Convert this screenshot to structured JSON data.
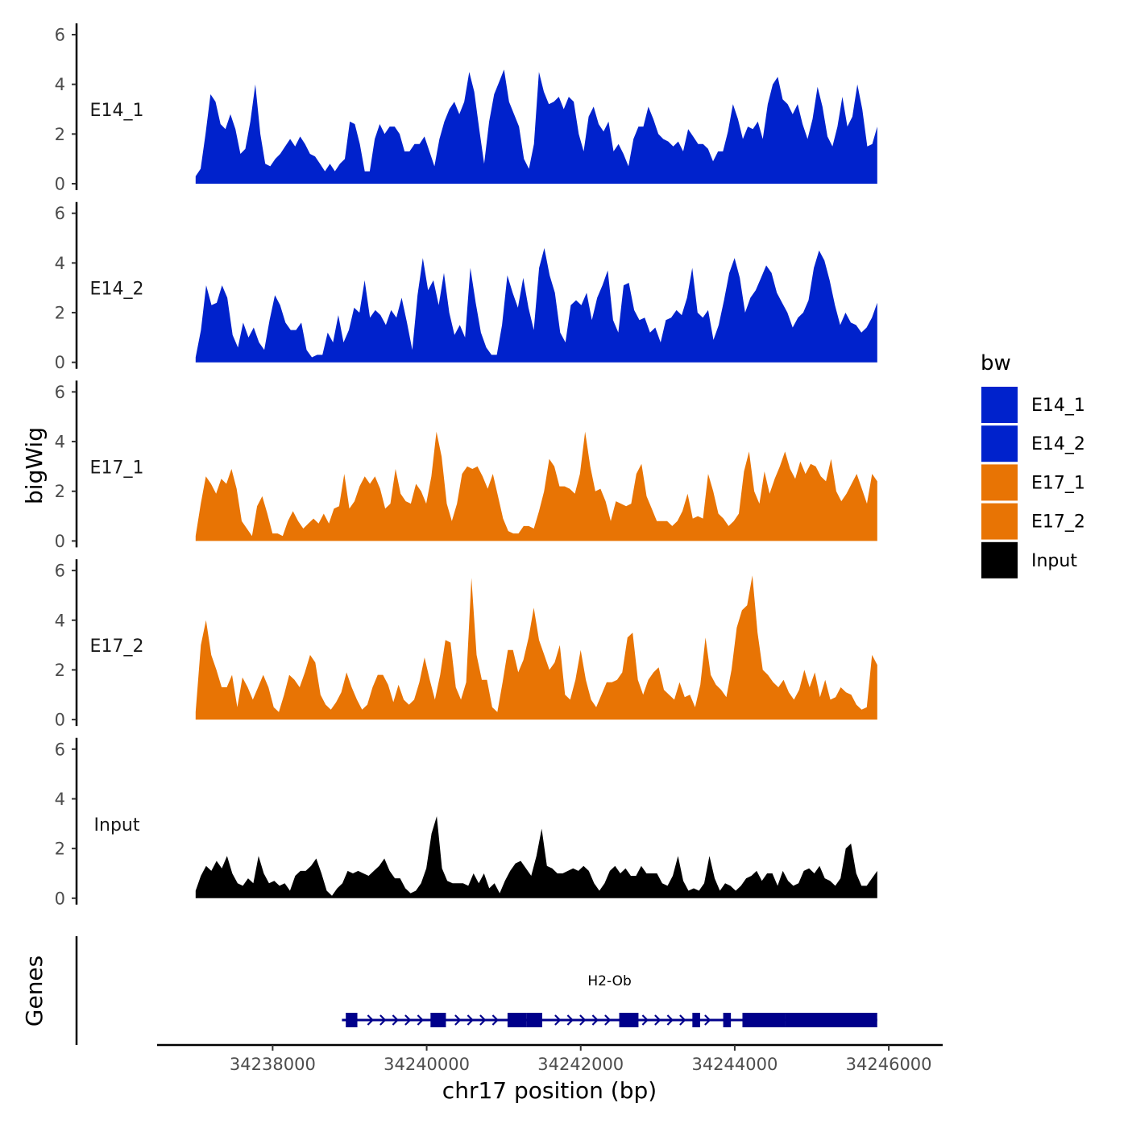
{
  "chart_data": {
    "type": "area",
    "title": "",
    "ylabel": "bigWig",
    "xlabel": "chr17 position (bp)",
    "ylim": [
      0,
      6
    ],
    "yticks": [
      0,
      2,
      4,
      6
    ],
    "xlim": [
      34236500,
      34246700
    ],
    "xticks": [
      34238000,
      34240000,
      34242000,
      34244000,
      34246000
    ],
    "x_start": 34237000,
    "x_end": 34245850,
    "tracks": [
      {
        "name": "E14_1",
        "color": "#0022cc",
        "values": [
          0.3,
          0.6,
          2.0,
          3.6,
          3.3,
          2.4,
          2.2,
          2.8,
          2.2,
          1.2,
          1.4,
          2.5,
          4.0,
          2.0,
          0.8,
          0.7,
          1.0,
          1.2,
          1.5,
          1.8,
          1.5,
          1.9,
          1.6,
          1.2,
          1.1,
          0.8,
          0.5,
          0.8,
          0.5,
          0.8,
          1.0,
          2.5,
          2.4,
          1.6,
          0.5,
          0.5,
          1.8,
          2.4,
          2.0,
          2.3,
          2.3,
          2.0,
          1.3,
          1.3,
          1.6,
          1.6,
          1.9,
          1.3,
          0.7,
          1.8,
          2.5,
          3.0,
          3.3,
          2.8,
          3.3,
          4.5,
          3.7,
          2.2,
          0.8,
          2.5,
          3.6,
          4.1,
          4.6,
          3.3,
          2.8,
          2.3,
          1.0,
          0.6,
          1.6,
          4.5,
          3.7,
          3.2,
          3.3,
          3.5,
          3.0,
          3.5,
          3.3,
          2.0,
          1.3,
          2.7,
          3.1,
          2.4,
          2.1,
          2.5,
          1.3,
          1.6,
          1.2,
          0.7,
          1.8,
          2.3,
          2.3,
          3.1,
          2.6,
          2.0,
          1.8,
          1.7,
          1.5,
          1.7,
          1.3,
          2.2,
          1.9,
          1.6,
          1.6,
          1.4,
          0.9,
          1.3,
          1.3,
          2.1,
          3.2,
          2.6,
          1.8,
          2.3,
          2.2,
          2.5,
          1.8,
          3.2,
          4.0,
          4.3,
          3.4,
          3.2,
          2.8,
          3.2,
          2.4,
          1.8,
          2.6,
          3.9,
          3.1,
          1.9,
          1.5,
          2.3,
          3.5,
          2.3,
          2.7,
          4.0,
          3.0,
          1.5,
          1.6,
          2.3
        ]
      },
      {
        "name": "E14_2",
        "color": "#0022cc",
        "values": [
          0.2,
          1.3,
          3.1,
          2.3,
          2.4,
          3.1,
          2.6,
          1.1,
          0.6,
          1.6,
          1.0,
          1.4,
          0.8,
          0.5,
          1.7,
          2.7,
          2.3,
          1.6,
          1.3,
          1.3,
          1.6,
          0.5,
          0.2,
          0.3,
          0.3,
          1.2,
          0.8,
          1.9,
          0.8,
          1.3,
          2.2,
          2.0,
          3.3,
          1.8,
          2.1,
          1.9,
          1.5,
          2.1,
          1.8,
          2.6,
          1.6,
          0.5,
          2.7,
          4.2,
          2.9,
          3.3,
          2.3,
          3.6,
          2.0,
          1.1,
          1.5,
          1.0,
          3.8,
          2.4,
          1.2,
          0.6,
          0.3,
          0.3,
          1.5,
          3.5,
          2.8,
          2.2,
          3.4,
          2.2,
          1.3,
          3.8,
          4.6,
          3.5,
          2.8,
          1.2,
          0.8,
          2.3,
          2.5,
          2.3,
          2.8,
          1.7,
          2.6,
          3.1,
          3.7,
          1.7,
          1.2,
          3.1,
          3.2,
          2.1,
          1.7,
          1.8,
          1.2,
          1.4,
          0.8,
          1.7,
          1.8,
          2.1,
          1.9,
          2.6,
          3.8,
          2.0,
          1.8,
          2.1,
          0.9,
          1.5,
          2.5,
          3.6,
          4.2,
          3.4,
          2.0,
          2.6,
          2.9,
          3.4,
          3.9,
          3.6,
          2.8,
          2.4,
          2.0,
          1.4,
          1.8,
          2.0,
          2.5,
          3.8,
          4.5,
          4.1,
          3.3,
          2.3,
          1.5,
          2.0,
          1.6,
          1.5,
          1.2,
          1.4,
          1.8,
          2.4
        ]
      },
      {
        "name": "E17_1",
        "color": "#e87404",
        "values": [
          0.2,
          1.5,
          2.6,
          2.3,
          1.9,
          2.5,
          2.3,
          2.9,
          2.1,
          0.8,
          0.5,
          0.2,
          1.4,
          1.8,
          1.1,
          0.3,
          0.3,
          0.2,
          0.8,
          1.2,
          0.8,
          0.5,
          0.7,
          0.9,
          0.7,
          1.1,
          0.7,
          1.3,
          1.4,
          2.7,
          1.3,
          1.6,
          2.2,
          2.6,
          2.3,
          2.6,
          2.1,
          1.3,
          1.5,
          2.9,
          1.9,
          1.6,
          1.5,
          2.3,
          2.0,
          1.5,
          2.6,
          4.4,
          3.4,
          1.5,
          0.8,
          1.5,
          2.7,
          3.0,
          2.9,
          3.0,
          2.6,
          2.1,
          2.7,
          1.8,
          0.9,
          0.4,
          0.3,
          0.3,
          0.6,
          0.6,
          0.5,
          1.2,
          2.0,
          3.3,
          3.0,
          2.2,
          2.2,
          2.1,
          1.9,
          2.7,
          4.4,
          3.0,
          2.0,
          2.1,
          1.6,
          0.8,
          1.6,
          1.5,
          1.4,
          1.5,
          2.7,
          3.1,
          1.8,
          1.3,
          0.8,
          0.8,
          0.8,
          0.6,
          0.8,
          1.2,
          1.9,
          0.9,
          1.0,
          0.9,
          2.7,
          2.0,
          1.1,
          0.9,
          0.6,
          0.8,
          1.1,
          2.8,
          3.6,
          2.0,
          1.5,
          2.8,
          1.9,
          2.5,
          3.0,
          3.6,
          2.9,
          2.5,
          3.2,
          2.7,
          3.1,
          3.0,
          2.6,
          2.4,
          3.3,
          2.0,
          1.6,
          1.9,
          2.3,
          2.7,
          2.1,
          1.5,
          2.7,
          2.4
        ]
      },
      {
        "name": "E17_2",
        "color": "#e87404",
        "values": [
          0.3,
          3.0,
          4.0,
          2.6,
          2.0,
          1.3,
          1.3,
          1.8,
          0.5,
          1.7,
          1.3,
          0.8,
          1.3,
          1.8,
          1.3,
          0.5,
          0.3,
          1.0,
          1.8,
          1.6,
          1.3,
          1.9,
          2.6,
          2.3,
          1.0,
          0.6,
          0.4,
          0.7,
          1.1,
          1.9,
          1.3,
          0.8,
          0.4,
          0.6,
          1.3,
          1.8,
          1.8,
          1.4,
          0.7,
          1.4,
          0.8,
          0.6,
          0.8,
          1.5,
          2.5,
          1.6,
          0.8,
          1.8,
          3.2,
          3.1,
          1.3,
          0.8,
          1.5,
          5.7,
          2.6,
          1.6,
          1.6,
          0.5,
          0.3,
          1.5,
          2.8,
          2.8,
          1.9,
          2.4,
          3.3,
          4.5,
          3.2,
          2.6,
          2.0,
          2.3,
          3.0,
          1.0,
          0.8,
          1.6,
          2.8,
          1.6,
          0.8,
          0.5,
          1.0,
          1.5,
          1.5,
          1.6,
          1.9,
          3.3,
          3.5,
          1.6,
          1.0,
          1.6,
          1.9,
          2.1,
          1.2,
          1.0,
          0.8,
          1.5,
          0.9,
          1.0,
          0.5,
          1.4,
          3.3,
          1.8,
          1.4,
          1.2,
          0.9,
          2.0,
          3.7,
          4.4,
          4.6,
          5.8,
          3.5,
          2.0,
          1.8,
          1.5,
          1.3,
          1.6,
          1.1,
          0.8,
          1.2,
          2.0,
          1.3,
          1.9,
          0.9,
          1.6,
          0.8,
          0.9,
          1.3,
          1.1,
          1.0,
          0.6,
          0.4,
          0.5,
          2.6,
          2.2
        ]
      },
      {
        "name": "Input",
        "color": "#000000",
        "values": [
          0.3,
          0.9,
          1.3,
          1.1,
          1.5,
          1.2,
          1.7,
          1.0,
          0.6,
          0.5,
          0.8,
          0.6,
          1.7,
          1.0,
          0.6,
          0.7,
          0.5,
          0.6,
          0.3,
          0.9,
          1.1,
          1.1,
          1.3,
          1.6,
          1.0,
          0.3,
          0.1,
          0.4,
          0.6,
          1.1,
          1.0,
          1.1,
          1.0,
          0.9,
          1.1,
          1.3,
          1.6,
          1.1,
          0.8,
          0.8,
          0.4,
          0.2,
          0.3,
          0.6,
          1.2,
          2.6,
          3.3,
          1.2,
          0.7,
          0.6,
          0.6,
          0.6,
          0.5,
          1.0,
          0.6,
          1.0,
          0.4,
          0.6,
          0.2,
          0.7,
          1.1,
          1.4,
          1.5,
          1.2,
          0.9,
          1.7,
          2.8,
          1.3,
          1.2,
          1.0,
          1.0,
          1.1,
          1.2,
          1.1,
          1.3,
          1.1,
          0.6,
          0.3,
          0.6,
          1.1,
          1.3,
          1.0,
          1.2,
          0.9,
          0.9,
          1.3,
          1.0,
          1.0,
          1.0,
          0.6,
          0.5,
          0.9,
          1.7,
          0.7,
          0.3,
          0.4,
          0.3,
          0.6,
          1.7,
          0.8,
          0.3,
          0.6,
          0.5,
          0.3,
          0.5,
          0.8,
          0.9,
          1.1,
          0.7,
          1.0,
          1.0,
          0.5,
          1.1,
          0.7,
          0.5,
          0.6,
          1.1,
          1.2,
          1.0,
          1.3,
          0.8,
          0.7,
          0.5,
          0.8,
          2.0,
          2.2,
          1.0,
          0.5,
          0.5,
          0.8,
          1.1
        ]
      }
    ],
    "legend": {
      "title": "bw",
      "position": "right",
      "entries": [
        "E14_1",
        "E14_2",
        "E17_1",
        "E17_2",
        "Input"
      ]
    },
    "genes": [
      {
        "name": "H2-Ob",
        "start": 34238900,
        "end": 34245850,
        "strand": "+",
        "color": "#00008b",
        "exons": [
          [
            34238950,
            34239100
          ],
          [
            34240050,
            34240250
          ],
          [
            34241050,
            34241300
          ],
          [
            34241300,
            34241500
          ],
          [
            34242500,
            34242750
          ],
          [
            34243450,
            34243550
          ],
          [
            34243850,
            34243950
          ],
          [
            34244100,
            34244650
          ],
          [
            34244650,
            34245850
          ]
        ]
      }
    ],
    "gene_track_label": "Genes",
    "grid": false
  }
}
